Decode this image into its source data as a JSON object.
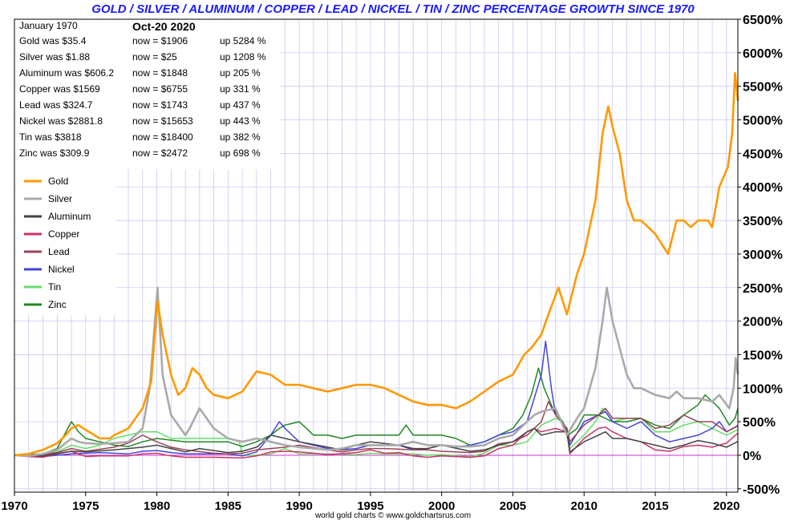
{
  "chart_data": {
    "type": "line",
    "title": "GOLD / SILVER / ALUMINUM / COPPER / LEAD / NICKEL / TIN / ZINC PERCENTAGE GROWTH SINCE 1970",
    "credit": "world gold charts © www.goldchartsrus.com",
    "xlabel": "",
    "ylabel": "",
    "xlim": [
      1970,
      2020.8
    ],
    "ylim": [
      -550,
      6500
    ],
    "x_ticks": [
      1970,
      1975,
      1980,
      1985,
      1990,
      1995,
      2000,
      2005,
      2010,
      2015,
      2020
    ],
    "x_tick_labels": [
      "1970",
      "1975",
      "1980",
      "1985",
      "1990",
      "1995",
      "2000",
      "2005",
      "2010",
      "2015",
      "2020"
    ],
    "y_ticks": [
      -500,
      0,
      500,
      1000,
      1500,
      2000,
      2500,
      3000,
      3500,
      4000,
      4500,
      5000,
      5500,
      6000,
      6500
    ],
    "y_tick_labels": [
      "-500%",
      "0%",
      "500%",
      "1000%",
      "1500%",
      "2000%",
      "2500%",
      "3000%",
      "3500%",
      "4000%",
      "4500%",
      "5000%",
      "5500%",
      "6000%",
      "6500%"
    ],
    "grid": true,
    "legend_position": "top-left",
    "info_box": {
      "base_label": "January 1970",
      "date_label": "Oct-20  2020",
      "rows": [
        {
          "was": "Gold was $35.4",
          "now": "now = $1906",
          "up": "up 5284 %"
        },
        {
          "was": "Silver was $1.88",
          "now": "now = $25",
          "up": "up 1208 %"
        },
        {
          "was": "Aluminum was $606.2",
          "now": "now = $1848",
          "up": "up 205 %"
        },
        {
          "was": "Copper was $1569",
          "now": "now = $6755",
          "up": "up 331 %"
        },
        {
          "was": "Lead was $324.7",
          "now": "now = $1743",
          "up": "up 437 %"
        },
        {
          "was": "Nickel was $2881.8",
          "now": "now = $15653",
          "up": "up 443 %"
        },
        {
          "was": "Tin was $3818",
          "now": "now = $18400",
          "up": "up 382 %"
        },
        {
          "was": "Zinc was $309.9",
          "now": "now = $2472",
          "up": "up 698 %"
        }
      ]
    },
    "series": [
      {
        "name": "Gold",
        "color": "#ff9900",
        "width": 2.6,
        "x": [
          1970,
          1971,
          1972,
          1973,
          1973.6,
          1974,
          1974.5,
          1975,
          1976,
          1976.7,
          1977,
          1978,
          1979,
          1979.6,
          1980.05,
          1980.4,
          1980.7,
          1981,
          1981.5,
          1982,
          1982.5,
          1983,
          1983.5,
          1984,
          1985,
          1985.5,
          1986,
          1987,
          1988,
          1989,
          1990,
          1991,
          1992,
          1993,
          1994,
          1995,
          1996,
          1997,
          1998,
          1999,
          2000,
          2001,
          2002,
          2003,
          2004,
          2005,
          2005.8,
          2006.3,
          2007,
          2007.5,
          2008.2,
          2008.8,
          2009.5,
          2010,
          2010.8,
          2011.3,
          2011.7,
          2012,
          2012.5,
          2013,
          2013.5,
          2014,
          2015,
          2015.9,
          2016.5,
          2017,
          2017.5,
          2018,
          2018.7,
          2019,
          2019.5,
          2020.1,
          2020.4,
          2020.6,
          2020.8
        ],
        "y": [
          0,
          20,
          80,
          180,
          300,
          400,
          450,
          380,
          250,
          250,
          300,
          400,
          700,
          1100,
          2300,
          1800,
          1500,
          1200,
          900,
          1000,
          1300,
          1200,
          1000,
          900,
          850,
          900,
          950,
          1250,
          1200,
          1050,
          1050,
          1000,
          950,
          1000,
          1050,
          1050,
          1000,
          900,
          800,
          750,
          750,
          700,
          800,
          950,
          1100,
          1200,
          1500,
          1600,
          1800,
          2100,
          2500,
          2100,
          2700,
          3000,
          3800,
          4800,
          5200,
          4900,
          4500,
          3800,
          3500,
          3500,
          3300,
          3000,
          3500,
          3500,
          3400,
          3500,
          3500,
          3400,
          4000,
          4300,
          4800,
          5700,
          5284
        ]
      },
      {
        "name": "Silver",
        "color": "#aaaaaa",
        "width": 2.6,
        "x": [
          1970,
          1971,
          1972,
          1973,
          1974,
          1974.5,
          1975,
          1976,
          1977,
          1978,
          1979,
          1979.5,
          1980.05,
          1980.4,
          1980.7,
          1981,
          1982,
          1982.3,
          1983,
          1984,
          1985,
          1986,
          1987,
          1988,
          1989,
          1990,
          1991,
          1992,
          1993,
          1994,
          1995,
          1996,
          1997,
          1998,
          1999,
          2000,
          2001,
          2002,
          2003,
          2004,
          2005,
          2006,
          2006.5,
          2007,
          2008,
          2008.8,
          2009.5,
          2010,
          2010.8,
          2011.3,
          2011.6,
          2012,
          2012.5,
          2013,
          2013.5,
          2014,
          2015,
          2016,
          2016.5,
          2017,
          2018,
          2019,
          2019.5,
          2020.2,
          2020.5,
          2020.65,
          2020.8
        ],
        "y": [
          0,
          -10,
          20,
          80,
          250,
          200,
          180,
          170,
          180,
          200,
          400,
          1000,
          2500,
          1200,
          900,
          600,
          300,
          400,
          700,
          400,
          250,
          200,
          250,
          200,
          150,
          120,
          100,
          80,
          100,
          150,
          150,
          150,
          150,
          200,
          150,
          150,
          130,
          130,
          150,
          250,
          300,
          500,
          600,
          650,
          700,
          300,
          550,
          700,
          1300,
          2000,
          2500,
          2000,
          1600,
          1200,
          1000,
          1000,
          900,
          850,
          950,
          850,
          850,
          800,
          900,
          700,
          1000,
          1450,
          1208
        ]
      },
      {
        "name": "Aluminum",
        "color": "#444444",
        "width": 1.5,
        "x": [
          1970,
          1972,
          1974,
          1975,
          1977,
          1979,
          1980,
          1981,
          1982,
          1983,
          1985,
          1986,
          1987,
          1988,
          1989,
          1990,
          1992,
          1993,
          1994,
          1995,
          1997,
          1998,
          1999,
          2000,
          2002,
          2003,
          2004,
          2005,
          2006,
          2006.5,
          2007,
          2008,
          2008.8,
          2009,
          2010,
          2011,
          2011.5,
          2012,
          2013,
          2014,
          2015,
          2016,
          2017,
          2018,
          2019,
          2020,
          2020.8
        ],
        "y": [
          0,
          -10,
          60,
          50,
          80,
          120,
          150,
          100,
          50,
          100,
          40,
          60,
          120,
          300,
          250,
          200,
          120,
          80,
          150,
          200,
          150,
          100,
          100,
          150,
          60,
          80,
          150,
          200,
          350,
          400,
          300,
          350,
          350,
          50,
          200,
          300,
          350,
          250,
          250,
          200,
          150,
          100,
          150,
          220,
          180,
          120,
          205
        ]
      },
      {
        "name": "Copper",
        "color": "#cc3366",
        "width": 1.5,
        "x": [
          1970,
          1971,
          1972,
          1973,
          1974,
          1975,
          1976,
          1978,
          1979,
          1980,
          1981,
          1982,
          1984,
          1986,
          1987,
          1988,
          1989,
          1990,
          1992,
          1994,
          1995,
          1996,
          1997,
          1998,
          1999,
          2000,
          2001,
          2002,
          2003,
          2004,
          2005,
          2006,
          2006.5,
          2007,
          2008,
          2008.8,
          2009,
          2010,
          2011,
          2011.5,
          2012,
          2013,
          2014,
          2015,
          2016,
          2017,
          2018,
          2019,
          2020,
          2020.8
        ],
        "y": [
          0,
          -20,
          -30,
          20,
          60,
          -20,
          -10,
          -10,
          20,
          30,
          -10,
          -30,
          -30,
          -40,
          -10,
          50,
          60,
          50,
          10,
          40,
          80,
          30,
          40,
          -10,
          -30,
          -10,
          -20,
          -30,
          -10,
          100,
          150,
          350,
          400,
          350,
          400,
          350,
          20,
          250,
          400,
          420,
          350,
          250,
          200,
          80,
          60,
          130,
          150,
          120,
          180,
          331
        ]
      },
      {
        "name": "Lead",
        "color": "#994455",
        "width": 1.5,
        "x": [
          1970,
          1972,
          1973,
          1974,
          1975,
          1977,
          1978,
          1979,
          1980,
          1981,
          1982,
          1984,
          1985,
          1986,
          1987,
          1988,
          1989,
          1990,
          1992,
          1993,
          1994,
          1995,
          1996,
          1997,
          1998,
          1999,
          2000,
          2002,
          2003,
          2004,
          2005,
          2006,
          2007,
          2007.5,
          2008,
          2008.8,
          2009,
          2010,
          2011,
          2011.5,
          2012,
          2013,
          2014,
          2015,
          2016,
          2017,
          2018,
          2019,
          2020,
          2020.8
        ],
        "y": [
          0,
          10,
          40,
          100,
          60,
          120,
          180,
          300,
          200,
          120,
          80,
          30,
          20,
          30,
          80,
          100,
          120,
          150,
          80,
          50,
          80,
          100,
          100,
          90,
          80,
          80,
          60,
          40,
          60,
          170,
          200,
          300,
          500,
          800,
          600,
          400,
          200,
          450,
          600,
          700,
          550,
          550,
          550,
          400,
          450,
          600,
          500,
          500,
          350,
          437
        ]
      },
      {
        "name": "Nickel",
        "color": "#4444dd",
        "width": 1.5,
        "x": [
          1970,
          1971,
          1972,
          1974,
          1975,
          1976,
          1978,
          1979,
          1980,
          1981,
          1982,
          1983,
          1985,
          1986,
          1987,
          1988,
          1988.6,
          1989,
          1990,
          1991,
          1992,
          1993,
          1994,
          1995,
          1996,
          1997,
          1998,
          1999,
          2000,
          2001,
          2002,
          2003,
          2004,
          2005,
          2006,
          2006.5,
          2007,
          2007.3,
          2007.7,
          2008,
          2008.8,
          2009,
          2010,
          2011,
          2011.5,
          2012,
          2013,
          2014,
          2015,
          2016,
          2017,
          2018,
          2019,
          2019.5,
          2020,
          2020.8
        ],
        "y": [
          0,
          -20,
          -20,
          20,
          30,
          40,
          20,
          60,
          70,
          40,
          20,
          20,
          20,
          -10,
          50,
          300,
          500,
          400,
          200,
          150,
          100,
          80,
          100,
          150,
          150,
          150,
          80,
          100,
          150,
          120,
          150,
          200,
          300,
          350,
          500,
          850,
          1200,
          1700,
          1000,
          600,
          400,
          150,
          500,
          600,
          650,
          500,
          400,
          500,
          300,
          200,
          250,
          300,
          400,
          500,
          350,
          443
        ]
      },
      {
        "name": "Tin",
        "color": "#66dd66",
        "width": 1.5,
        "x": [
          1970,
          1972,
          1973,
          1974,
          1975,
          1976,
          1977,
          1978,
          1979,
          1980,
          1981,
          1982,
          1983,
          1984,
          1985,
          1985.8,
          1986,
          1987,
          1988,
          1989,
          1990,
          1992,
          1994,
          1995,
          1996,
          1997,
          1998,
          1999,
          2000,
          2001,
          2002,
          2003,
          2004,
          2005,
          2006,
          2007,
          2008,
          2008.5,
          2008.9,
          2009,
          2010,
          2010.8,
          2011.3,
          2011.7,
          2012,
          2013,
          2014,
          2015,
          2016,
          2017,
          2018,
          2019,
          2020,
          2020.8
        ],
        "y": [
          0,
          20,
          50,
          150,
          100,
          150,
          250,
          300,
          350,
          350,
          250,
          250,
          250,
          250,
          250,
          200,
          0,
          0,
          20,
          100,
          20,
          20,
          10,
          30,
          20,
          20,
          20,
          0,
          10,
          -10,
          -20,
          30,
          150,
          150,
          200,
          450,
          550,
          500,
          200,
          100,
          300,
          500,
          700,
          600,
          500,
          550,
          550,
          350,
          350,
          450,
          500,
          400,
          300,
          382
        ]
      },
      {
        "name": "Zinc",
        "color": "#228822",
        "width": 1.5,
        "x": [
          1970,
          1972,
          1973,
          1973.5,
          1974,
          1974.5,
          1975,
          1976,
          1977,
          1978,
          1979,
          1980,
          1982,
          1984,
          1985,
          1986,
          1987,
          1988,
          1988.6,
          1989,
          1990,
          1991,
          1992,
          1993,
          1994,
          1995,
          1996,
          1997,
          1997.5,
          1998,
          1999,
          2000,
          2001,
          2002,
          2003,
          2004,
          2005,
          2005.7,
          2006.3,
          2006.8,
          2007.2,
          2007.8,
          2008.5,
          2008.9,
          2009.5,
          2010,
          2011,
          2012,
          2013,
          2014,
          2015,
          2016,
          2017,
          2018,
          2018.5,
          2019,
          2019.5,
          2020.2,
          2020.6,
          2020.8
        ],
        "y": [
          0,
          20,
          100,
          300,
          500,
          350,
          250,
          200,
          150,
          130,
          200,
          250,
          200,
          200,
          200,
          130,
          200,
          300,
          400,
          450,
          500,
          300,
          300,
          250,
          300,
          300,
          300,
          300,
          450,
          300,
          300,
          300,
          250,
          150,
          200,
          300,
          400,
          600,
          900,
          1300,
          1000,
          700,
          500,
          300,
          400,
          600,
          600,
          500,
          500,
          550,
          450,
          400,
          600,
          750,
          900,
          800,
          700,
          450,
          550,
          698
        ]
      }
    ]
  }
}
